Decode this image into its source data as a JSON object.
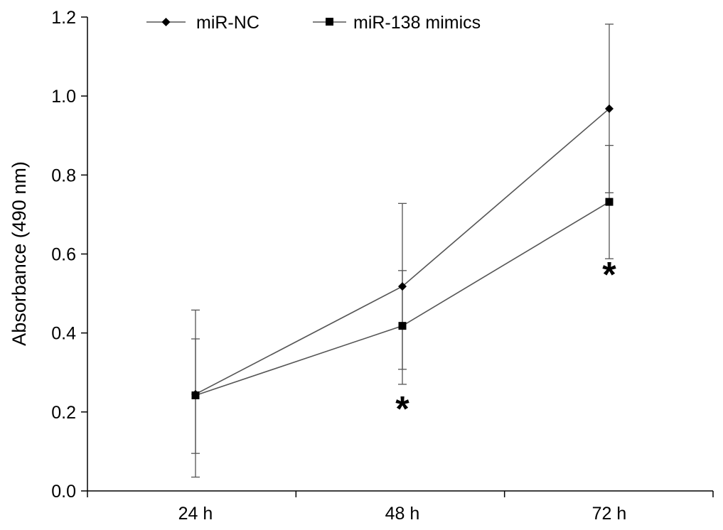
{
  "chart_data": {
    "type": "line",
    "categories": [
      "24 h",
      "48 h",
      "72 h"
    ],
    "ylabel": "Absorbance (490 nm)",
    "ylim": [
      0,
      1.2
    ],
    "yticks": [
      "0.0",
      "0.2",
      "0.4",
      "0.6",
      "0.8",
      "1.0",
      "1.2"
    ],
    "ytick_values": [
      0,
      0.2,
      0.4,
      0.6,
      0.8,
      1.0,
      1.2
    ],
    "legend_position": "top",
    "grid": false,
    "series": [
      {
        "name": "miR-NC",
        "marker": "diamond",
        "values": [
          0.245,
          0.518,
          0.968
        ],
        "error_upper": [
          0.458,
          0.728,
          1.182
        ],
        "error_lower": [
          0.035,
          0.308,
          0.755
        ]
      },
      {
        "name": "miR-138 mimics",
        "marker": "square",
        "values": [
          0.242,
          0.418,
          0.732
        ],
        "error_upper": [
          0.385,
          0.558,
          0.875
        ],
        "error_lower": [
          0.095,
          0.27,
          0.588
        ]
      }
    ],
    "annotations": [
      {
        "text": "*",
        "category": "48 h",
        "y": 0.21
      },
      {
        "text": "*",
        "category": "72 h",
        "y": 0.55
      }
    ]
  },
  "colors": {
    "line": "#555555",
    "marker": "#000000",
    "errorbar": "#555555",
    "axis": "#000000"
  }
}
